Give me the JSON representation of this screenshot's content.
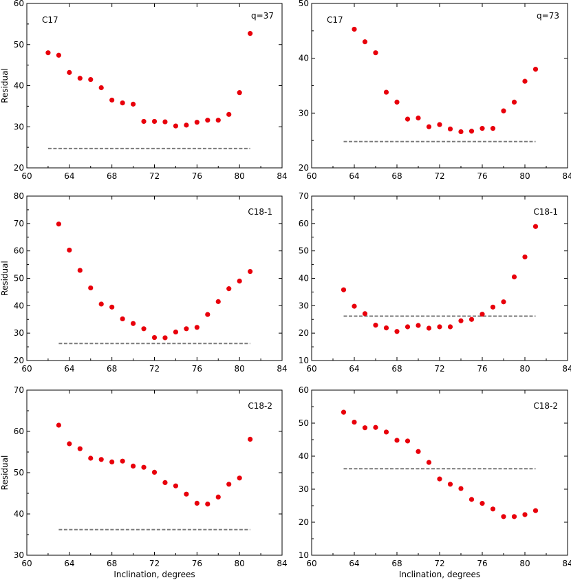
{
  "chart_data": [
    {
      "type": "scatter",
      "label": "C17",
      "annotation": "q=37",
      "xlabel": "",
      "ylabel": "Residual",
      "xlim": [
        60,
        84
      ],
      "ylim": [
        20,
        60
      ],
      "xticks": [
        60,
        64,
        68,
        72,
        76,
        80,
        84
      ],
      "yticks": [
        20,
        30,
        40,
        50,
        60
      ],
      "series": [
        {
          "x": [
            62,
            63,
            64,
            65,
            66,
            67,
            68,
            69,
            70,
            71,
            72,
            73,
            74,
            75,
            76,
            77,
            78,
            79,
            80,
            81
          ],
          "y": [
            48,
            47.4,
            43.2,
            41.8,
            41.5,
            39.5,
            36.5,
            35.8,
            35.5,
            31.3,
            31.3,
            31.2,
            30.2,
            30.4,
            31.1,
            31.6,
            31.6,
            33,
            38.3,
            52.7
          ],
          "color": "#e8000b"
        }
      ],
      "reference_line": {
        "y": 24.7,
        "x": [
          62,
          81
        ],
        "color": "#7a7a7a"
      }
    },
    {
      "type": "scatter",
      "label": "C17",
      "annotation": "q=73",
      "xlabel": "",
      "ylabel": "",
      "xlim": [
        60,
        84
      ],
      "ylim": [
        20,
        50
      ],
      "xticks": [
        60,
        64,
        68,
        72,
        76,
        80,
        84
      ],
      "yticks": [
        20,
        30,
        40,
        50
      ],
      "series": [
        {
          "x": [
            64,
            65,
            66,
            67,
            68,
            69,
            70,
            71,
            72,
            73,
            74,
            75,
            76,
            77,
            78,
            79,
            80,
            81
          ],
          "y": [
            45.3,
            43,
            41,
            33.8,
            32,
            28.9,
            29.1,
            27.5,
            27.9,
            27.1,
            26.6,
            26.7,
            27.2,
            27.2,
            30.4,
            32,
            35.8,
            38
          ],
          "color": "#e8000b"
        }
      ],
      "reference_line": {
        "y": 24.8,
        "x": [
          63,
          81
        ],
        "color": "#7a7a7a"
      }
    },
    {
      "type": "scatter",
      "label": "C18-1",
      "xlabel": "",
      "ylabel": "Residual",
      "xlim": [
        60,
        84
      ],
      "ylim": [
        20,
        80
      ],
      "xticks": [
        60,
        64,
        68,
        72,
        76,
        80,
        84
      ],
      "yticks": [
        20,
        30,
        40,
        50,
        60,
        70,
        80
      ],
      "series": [
        {
          "x": [
            63,
            64,
            65,
            66,
            67,
            68,
            69,
            70,
            71,
            72,
            73,
            74,
            75,
            76,
            77,
            78,
            79,
            80,
            81
          ],
          "y": [
            69.8,
            60.3,
            52.9,
            46.5,
            40.6,
            39.5,
            35.2,
            33.5,
            31.6,
            28.4,
            28.3,
            30.4,
            31.6,
            32.1,
            36.8,
            41.5,
            46.2,
            49,
            52.5
          ],
          "color": "#e8000b"
        }
      ],
      "reference_line": {
        "y": 26.2,
        "x": [
          63,
          81
        ],
        "color": "#7a7a7a"
      }
    },
    {
      "type": "scatter",
      "label": "C18-1",
      "xlabel": "",
      "ylabel": "",
      "xlim": [
        60,
        84
      ],
      "ylim": [
        10,
        70
      ],
      "xticks": [
        60,
        64,
        68,
        72,
        76,
        80,
        84
      ],
      "yticks": [
        10,
        20,
        30,
        40,
        50,
        60,
        70
      ],
      "series": [
        {
          "x": [
            63,
            64,
            65,
            66,
            67,
            68,
            69,
            70,
            71,
            72,
            73,
            74,
            75,
            76,
            77,
            78,
            79,
            80,
            81
          ],
          "y": [
            35.8,
            29.8,
            27.1,
            22.9,
            21.9,
            20.6,
            22.3,
            22.8,
            21.8,
            22.3,
            22.3,
            24.5,
            25,
            26.9,
            29.5,
            31.4,
            40.5,
            47.8,
            58.9
          ],
          "color": "#e8000b"
        }
      ],
      "reference_line": {
        "y": 26.2,
        "x": [
          63,
          81
        ],
        "color": "#7a7a7a"
      }
    },
    {
      "type": "scatter",
      "label": "C18-2",
      "xlabel": "Inclination, degrees",
      "ylabel": "Residual",
      "xlim": [
        60,
        84
      ],
      "ylim": [
        30,
        70
      ],
      "xticks": [
        60,
        64,
        68,
        72,
        76,
        80,
        84
      ],
      "yticks": [
        30,
        40,
        50,
        60,
        70
      ],
      "series": [
        {
          "x": [
            63,
            64,
            65,
            66,
            67,
            68,
            69,
            70,
            71,
            72,
            73,
            74,
            75,
            76,
            77,
            78,
            79,
            80,
            81
          ],
          "y": [
            61.5,
            57,
            55.8,
            53.5,
            53.2,
            52.6,
            52.8,
            51.6,
            51.3,
            50.1,
            47.6,
            46.8,
            44.8,
            42.6,
            42.4,
            44.1,
            47.2,
            48.7,
            58.1
          ],
          "color": "#e8000b"
        }
      ],
      "reference_line": {
        "y": 36.2,
        "x": [
          63,
          81
        ],
        "color": "#7a7a7a"
      }
    },
    {
      "type": "scatter",
      "label": "C18-2",
      "xlabel": "Inclination, degrees",
      "ylabel": "",
      "xlim": [
        60,
        84
      ],
      "ylim": [
        10,
        60
      ],
      "xticks": [
        60,
        64,
        68,
        72,
        76,
        80,
        84
      ],
      "yticks": [
        10,
        20,
        30,
        40,
        50,
        60
      ],
      "series": [
        {
          "x": [
            63,
            64,
            65,
            66,
            67,
            68,
            69,
            70,
            71,
            72,
            73,
            74,
            75,
            76,
            77,
            78,
            79,
            80,
            81
          ],
          "y": [
            53.3,
            50.3,
            48.6,
            48.7,
            47.3,
            44.8,
            44.6,
            41.4,
            38.1,
            33.1,
            31.5,
            30.2,
            26.9,
            25.7,
            24,
            21.7,
            21.7,
            22.3,
            23.5
          ],
          "color": "#e8000b"
        }
      ],
      "reference_line": {
        "y": 36.2,
        "x": [
          63,
          81
        ],
        "color": "#7a7a7a"
      }
    }
  ]
}
